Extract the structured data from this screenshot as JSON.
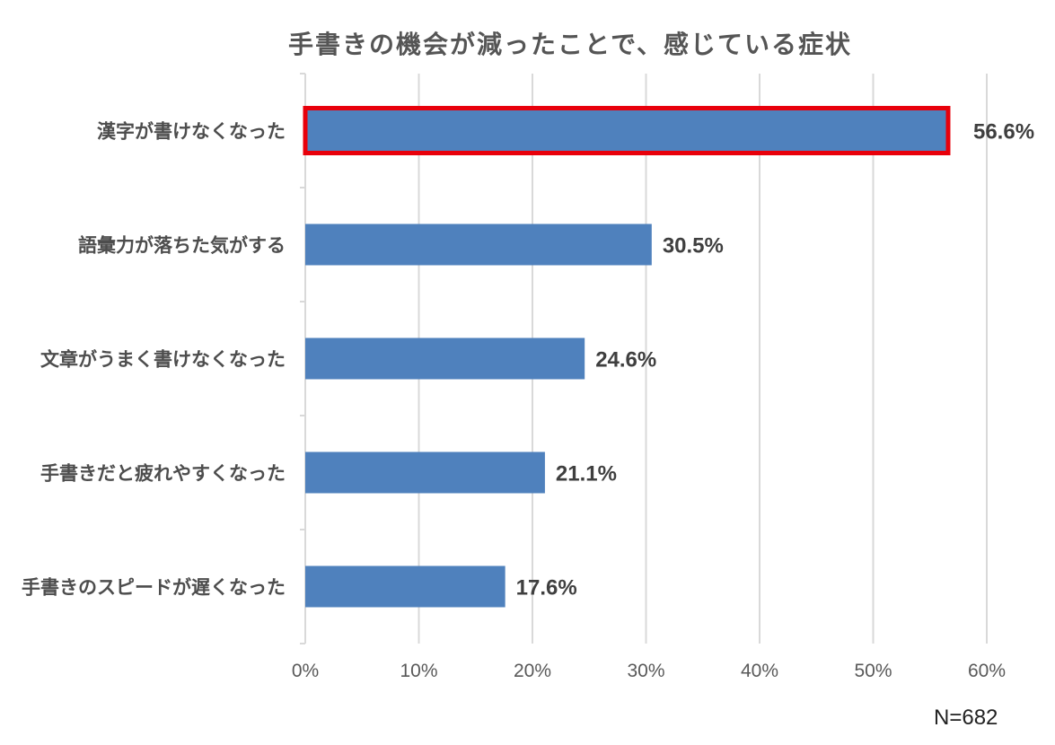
{
  "chart_data": {
    "type": "bar",
    "orientation": "horizontal",
    "title": "手書きの機会が減ったことで、感じている症状",
    "categories": [
      "漢字が書けなくなった",
      "語彙力が落ちた気がする",
      "文章がうまく書けなくなった",
      "手書きだと疲れやすくなった",
      "手書きのスピードが遅くなった"
    ],
    "values": [
      56.6,
      30.5,
      24.6,
      21.1,
      17.6
    ],
    "value_labels": [
      "56.6%",
      "30.5%",
      "24.6%",
      "21.1%",
      "17.6%"
    ],
    "xlim": [
      0,
      60
    ],
    "x_ticks": [
      "0%",
      "10%",
      "20%",
      "30%",
      "40%",
      "50%",
      "60%"
    ],
    "grid": "vertical",
    "highlighted_category": "漢字が書けなくなった",
    "colors": {
      "bar": "#4F81BD",
      "highlight_border": "#E8000B",
      "grid": "#D9D9D9"
    },
    "note": "N=682"
  }
}
